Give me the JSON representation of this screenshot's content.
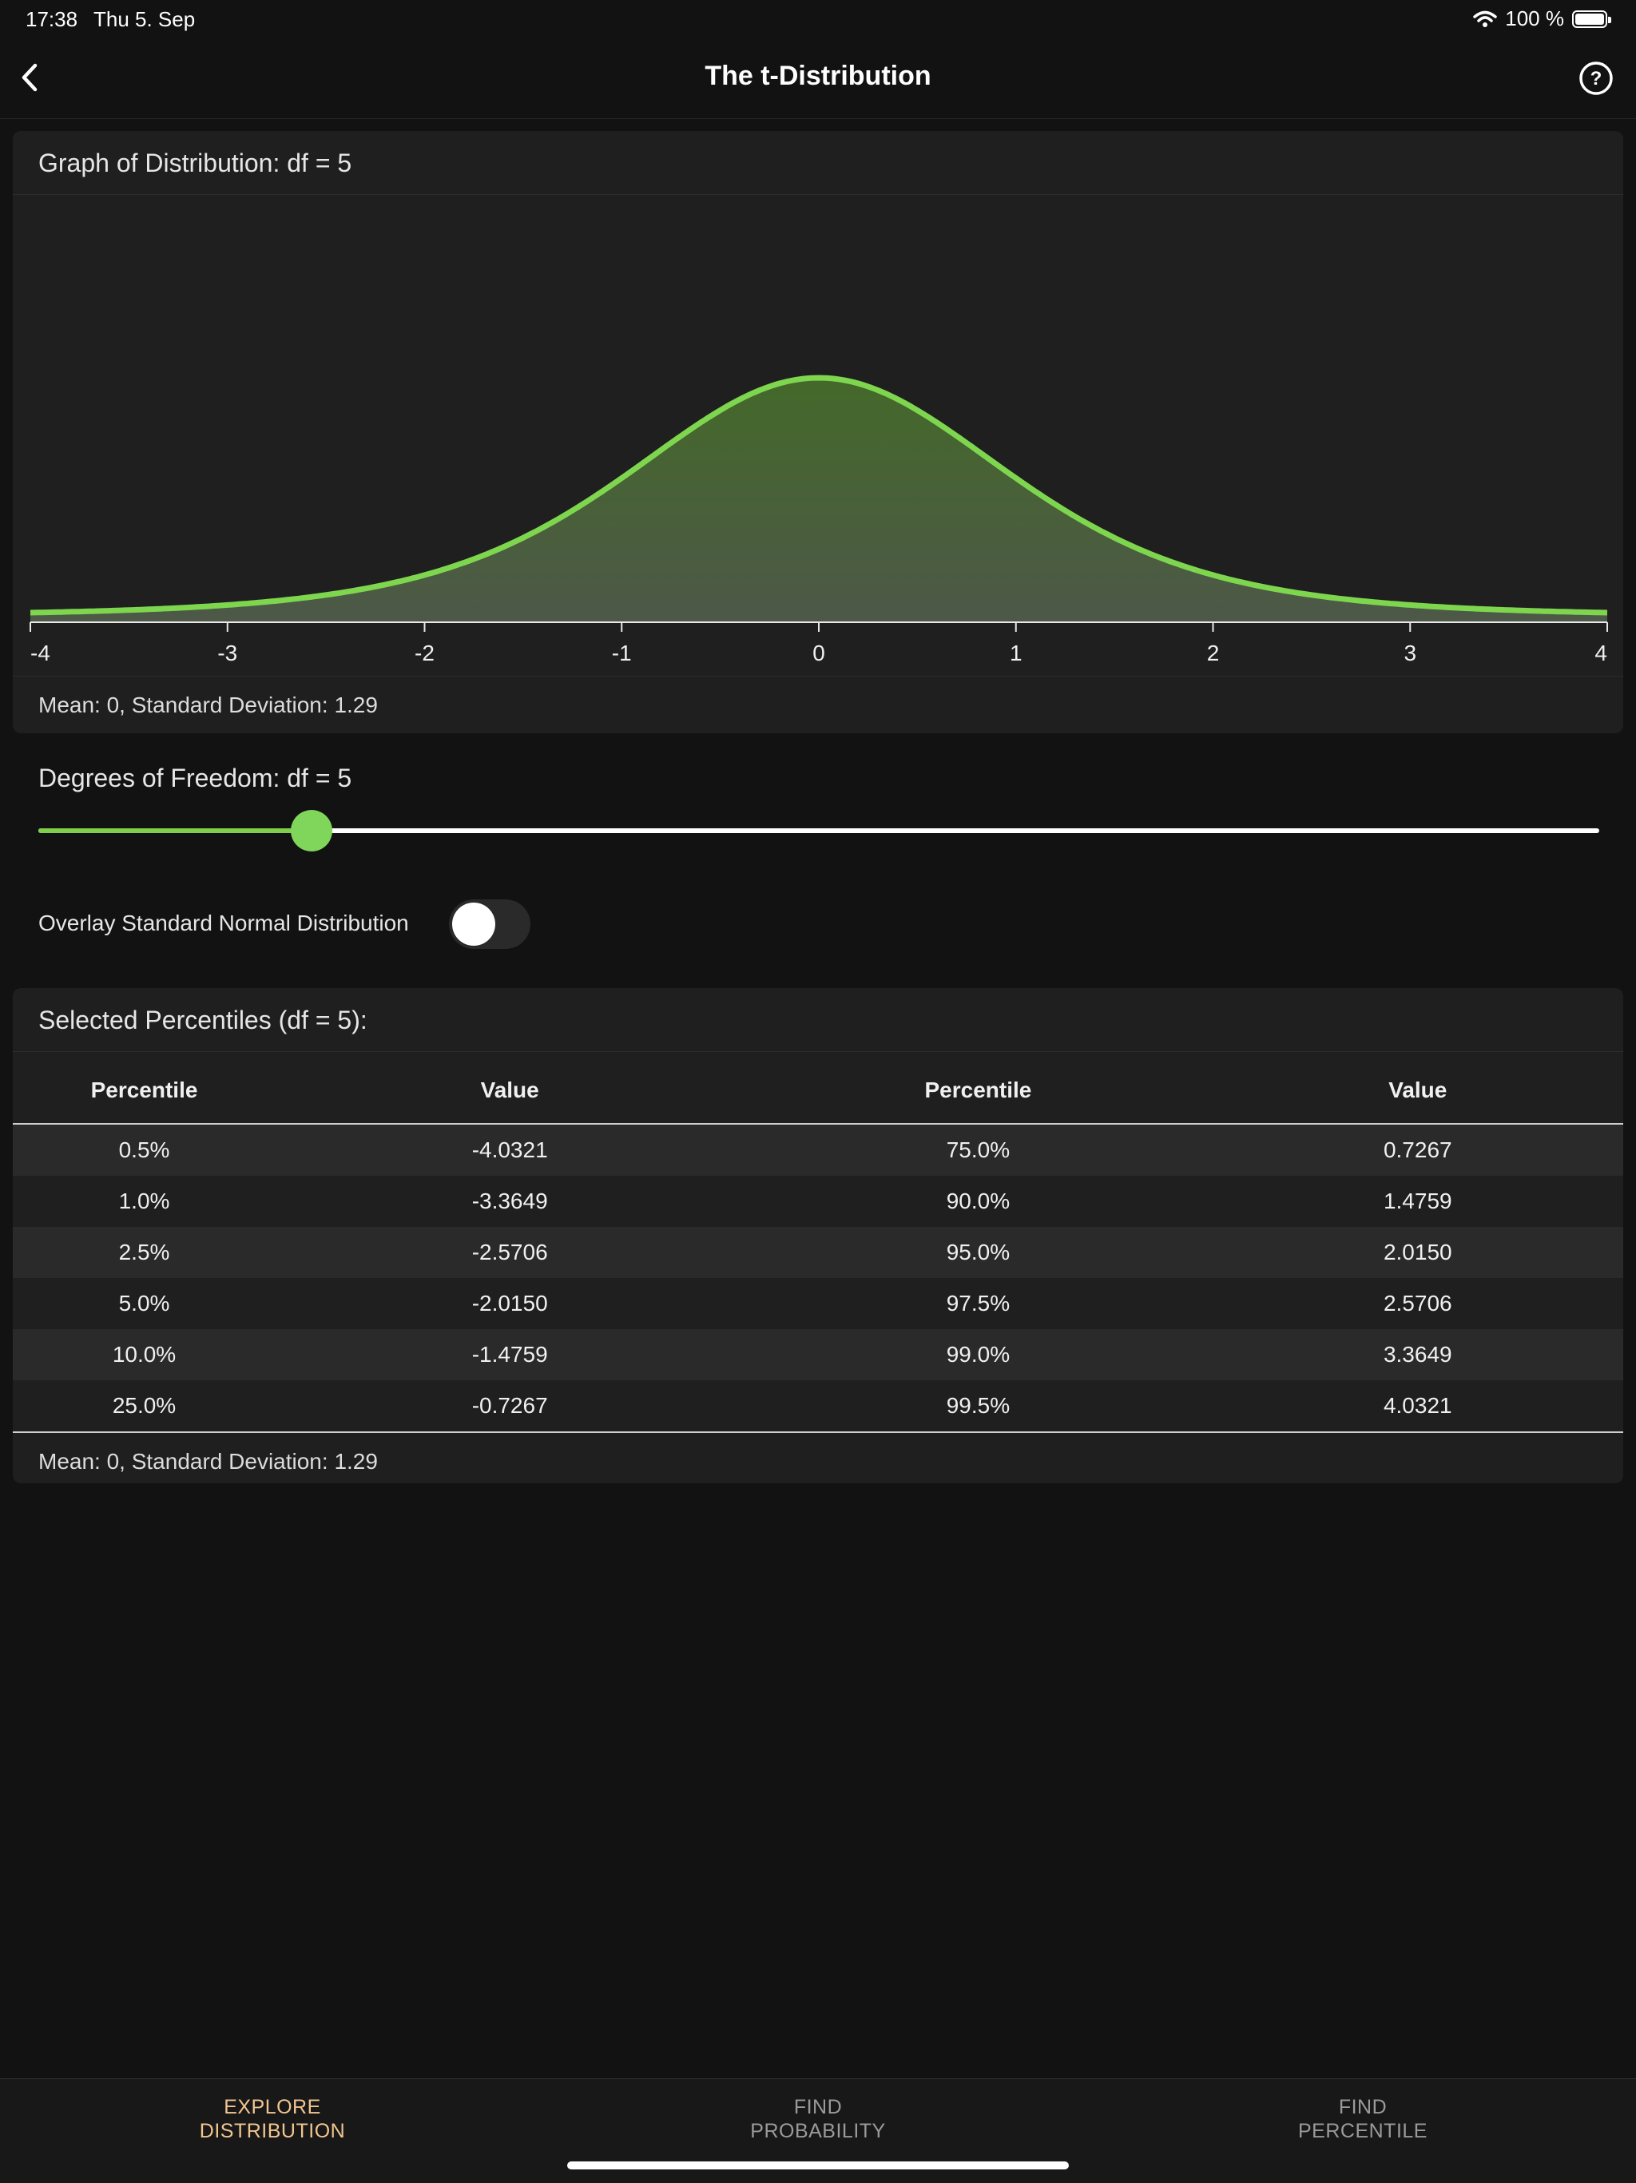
{
  "status": {
    "time": "17:38",
    "date": "Thu 5. Sep",
    "battery_text": "100 %"
  },
  "nav": {
    "title": "The t-Distribution"
  },
  "graph": {
    "header": "Graph of Distribution: df = 5",
    "footer": "Mean: 0, Standard Deviation: 1.29",
    "accent": "#7ed64f"
  },
  "chart_data": {
    "type": "area",
    "distribution": "t",
    "df": 5,
    "xlim": [
      -4,
      4
    ],
    "x_ticks": [
      "-4",
      "-3",
      "-2",
      "-1",
      "0",
      "1",
      "2",
      "3",
      "4"
    ],
    "x": [
      -4,
      -3.5,
      -3,
      -2.5,
      -2,
      -1.5,
      -1,
      -0.5,
      0,
      0.5,
      1,
      1.5,
      2,
      2.5,
      3,
      3.5,
      4
    ],
    "y": [
      0.0051,
      0.0103,
      0.0173,
      0.0303,
      0.0651,
      0.1245,
      0.2197,
      0.3279,
      0.3796,
      0.3279,
      0.2197,
      0.1245,
      0.0651,
      0.0303,
      0.0173,
      0.0103,
      0.0051
    ]
  },
  "df_control": {
    "label": "Degrees of Freedom: df = 5",
    "value_fraction": 0.175
  },
  "overlay": {
    "label": "Overlay Standard Normal Distribution",
    "enabled": false
  },
  "percentiles": {
    "header": "Selected Percentiles (df = 5):",
    "columns": [
      "Percentile",
      "Value",
      "Percentile",
      "Value"
    ],
    "rows": [
      [
        "0.5%",
        "-4.0321",
        "75.0%",
        "0.7267"
      ],
      [
        "1.0%",
        "-3.3649",
        "90.0%",
        "1.4759"
      ],
      [
        "2.5%",
        "-2.5706",
        "95.0%",
        "2.0150"
      ],
      [
        "5.0%",
        "-2.0150",
        "97.5%",
        "2.5706"
      ],
      [
        "10.0%",
        "-1.4759",
        "99.0%",
        "3.3649"
      ],
      [
        "25.0%",
        "-0.7267",
        "99.5%",
        "4.0321"
      ]
    ],
    "footer": "Mean: 0, Standard Deviation: 1.29"
  },
  "tabs": [
    {
      "line1": "EXPLORE",
      "line2": "DISTRIBUTION",
      "active": true
    },
    {
      "line1": "FIND",
      "line2": "PROBABILITY",
      "active": false
    },
    {
      "line1": "FIND",
      "line2": "PERCENTILE",
      "active": false
    }
  ]
}
